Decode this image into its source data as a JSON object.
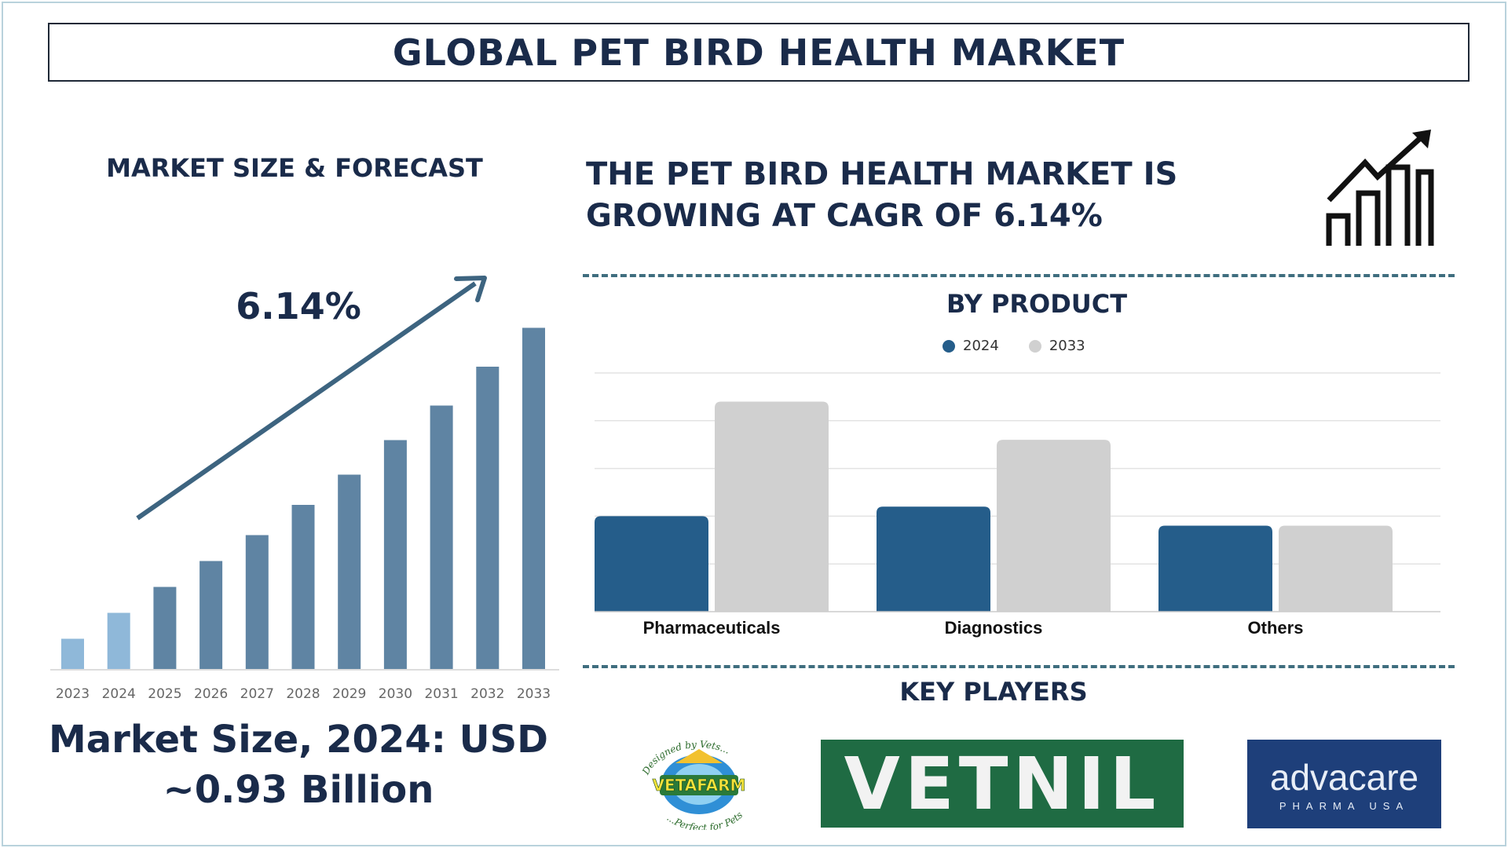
{
  "title": "GLOBAL PET BIRD HEALTH MARKET",
  "left_panel": {
    "heading": "MARKET SIZE & FORECAST",
    "cagr": "6.14%",
    "market_size_line1": "Market Size, 2024: USD",
    "market_size_line2": "~0.93 Billion"
  },
  "headline": {
    "line1": "THE PET BIRD HEALTH MARKET IS",
    "line2": "GROWING AT CAGR OF 6.14%"
  },
  "product_section": {
    "heading": "BY PRODUCT"
  },
  "key_players": {
    "heading": "KEY PLAYERS",
    "logos": [
      {
        "name": "VETAFARM",
        "top_text": "Designed by Vets...",
        "bottom_text": "...Perfect for Pets"
      },
      {
        "name": "VETNIL"
      },
      {
        "name": "advacare",
        "sub": "PHARMA USA"
      }
    ]
  },
  "colors": {
    "navy_text": "#1a2b4a",
    "bar_light": "#8fb8d9",
    "bar_dark": "#5f84a3",
    "arrow": "#3d6480",
    "series_2024": "#255d8a",
    "series_2033": "#d0d0d0"
  },
  "chart_data": [
    {
      "type": "bar",
      "categories": [
        "2023",
        "2024",
        "2025",
        "2026",
        "2027",
        "2028",
        "2029",
        "2030",
        "2031",
        "2032",
        "2033"
      ],
      "values": [
        0.87,
        0.93,
        0.99,
        1.05,
        1.11,
        1.18,
        1.25,
        1.33,
        1.41,
        1.5,
        1.59
      ],
      "title": "",
      "xlabel": "",
      "ylabel": "",
      "ylim": [
        0.8,
        1.6
      ],
      "grid": false,
      "annotation": "6.14%"
    },
    {
      "type": "bar",
      "categories": [
        "Pharmaceuticals",
        "Diagnostics",
        "Others"
      ],
      "series": [
        {
          "name": "2024",
          "values": [
            2.0,
            2.2,
            1.8
          ]
        },
        {
          "name": "2033",
          "values": [
            4.4,
            3.6,
            1.8
          ]
        }
      ],
      "title": "",
      "xlabel": "",
      "ylabel": "",
      "ylim": [
        0,
        5
      ],
      "grid": true,
      "legend": "top-center"
    }
  ]
}
